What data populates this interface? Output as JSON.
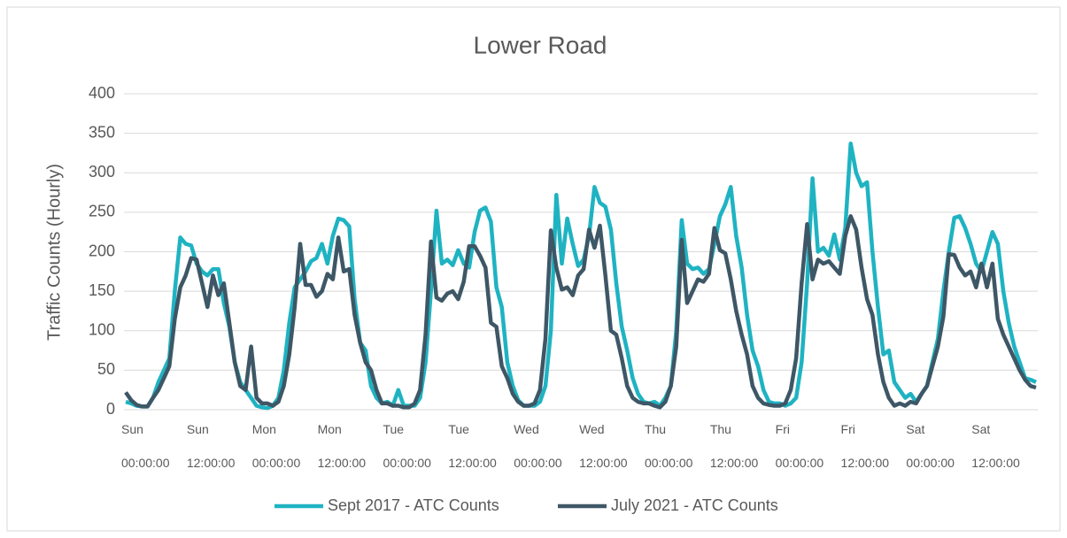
{
  "chart_data": {
    "type": "line",
    "title": "Lower Road",
    "y_label": "Traffic Counts (Hourly)",
    "categories": [
      "Sun\n00:00:00",
      null,
      null,
      null,
      null,
      null,
      null,
      null,
      null,
      null,
      null,
      null,
      "Sun\n12:00:00",
      null,
      null,
      null,
      null,
      null,
      null,
      null,
      null,
      null,
      null,
      null,
      "Mon\n00:00:00",
      null,
      null,
      null,
      null,
      null,
      null,
      null,
      null,
      null,
      null,
      null,
      "Mon\n12:00:00",
      null,
      null,
      null,
      null,
      null,
      null,
      null,
      null,
      null,
      null,
      null,
      "Tue\n00:00:00",
      null,
      null,
      null,
      null,
      null,
      null,
      null,
      null,
      null,
      null,
      null,
      "Tue\n12:00:00",
      null,
      null,
      null,
      null,
      null,
      null,
      null,
      null,
      null,
      null,
      null,
      "Wed\n00:00:00",
      null,
      null,
      null,
      null,
      null,
      null,
      null,
      null,
      null,
      null,
      null,
      "Wed\n12:00:00",
      null,
      null,
      null,
      null,
      null,
      null,
      null,
      null,
      null,
      null,
      null,
      "Thu\n00:00:00",
      null,
      null,
      null,
      null,
      null,
      null,
      null,
      null,
      null,
      null,
      null,
      "Thu\n12:00:00",
      null,
      null,
      null,
      null,
      null,
      null,
      null,
      null,
      null,
      null,
      null,
      "Fri\n00:00:00",
      null,
      null,
      null,
      null,
      null,
      null,
      null,
      null,
      null,
      null,
      null,
      "Fri\n12:00:00",
      null,
      null,
      null,
      null,
      null,
      null,
      null,
      null,
      null,
      null,
      null,
      "Sat\n00:00:00",
      null,
      null,
      null,
      null,
      null,
      null,
      null,
      null,
      null,
      null,
      null,
      "Sat\n12:00:00",
      null,
      null,
      null,
      null,
      null,
      null,
      null,
      null,
      null,
      null,
      null
    ],
    "series": [
      {
        "name": "Sept 2017 - ATC Counts",
        "color": "#1fb3c2",
        "values": [
          10,
          8,
          5,
          4,
          4,
          15,
          35,
          50,
          65,
          150,
          218,
          210,
          208,
          185,
          175,
          170,
          178,
          178,
          135,
          105,
          60,
          35,
          25,
          15,
          5,
          3,
          2,
          5,
          15,
          50,
          110,
          155,
          165,
          175,
          188,
          192,
          210,
          185,
          220,
          242,
          240,
          232,
          140,
          85,
          75,
          30,
          15,
          8,
          10,
          5,
          25,
          5,
          5,
          5,
          15,
          60,
          150,
          252,
          185,
          190,
          183,
          202,
          185,
          180,
          225,
          252,
          256,
          238,
          155,
          130,
          60,
          30,
          12,
          5,
          5,
          5,
          10,
          30,
          100,
          272,
          185,
          242,
          210,
          182,
          190,
          220,
          282,
          262,
          257,
          228,
          160,
          105,
          75,
          40,
          20,
          10,
          8,
          10,
          5,
          15,
          30,
          100,
          240,
          185,
          178,
          180,
          172,
          178,
          210,
          245,
          260,
          282,
          220,
          180,
          120,
          75,
          55,
          25,
          10,
          8,
          8,
          5,
          8,
          15,
          60,
          160,
          293,
          200,
          205,
          195,
          222,
          190,
          230,
          337,
          300,
          283,
          288,
          200,
          130,
          70,
          75,
          35,
          25,
          15,
          20,
          10,
          20,
          30,
          60,
          90,
          150,
          200,
          243,
          245,
          230,
          210,
          185,
          175,
          200,
          225,
          210,
          150,
          110,
          80,
          60,
          40,
          38,
          35
        ]
      },
      {
        "name": "July 2021 - ATC Counts",
        "color": "#3e5766",
        "values": [
          22,
          12,
          6,
          4,
          4,
          15,
          25,
          40,
          55,
          115,
          155,
          170,
          192,
          190,
          160,
          130,
          170,
          145,
          160,
          110,
          60,
          30,
          25,
          80,
          15,
          8,
          8,
          5,
          10,
          30,
          70,
          130,
          210,
          158,
          158,
          143,
          150,
          172,
          165,
          218,
          175,
          178,
          120,
          85,
          60,
          50,
          25,
          8,
          8,
          5,
          5,
          3,
          3,
          8,
          25,
          95,
          213,
          142,
          138,
          147,
          150,
          140,
          162,
          207,
          207,
          195,
          180,
          110,
          105,
          55,
          40,
          20,
          10,
          5,
          5,
          8,
          25,
          90,
          227,
          180,
          152,
          155,
          145,
          170,
          178,
          228,
          205,
          233,
          170,
          100,
          95,
          65,
          30,
          15,
          10,
          8,
          8,
          5,
          3,
          10,
          30,
          80,
          215,
          135,
          150,
          165,
          162,
          172,
          230,
          202,
          198,
          165,
          125,
          95,
          70,
          30,
          15,
          8,
          6,
          5,
          5,
          8,
          25,
          65,
          160,
          235,
          165,
          190,
          185,
          188,
          180,
          172,
          220,
          245,
          228,
          180,
          140,
          120,
          70,
          35,
          15,
          5,
          8,
          5,
          10,
          8,
          20,
          30,
          55,
          80,
          118,
          197,
          196,
          180,
          170,
          175,
          155,
          185,
          155,
          185,
          115,
          95,
          80,
          65,
          50,
          38,
          30,
          28
        ]
      }
    ],
    "ylim": [
      0,
      400
    ],
    "yticks": [
      0,
      50,
      100,
      150,
      200,
      250,
      300,
      350,
      400
    ],
    "grid": true,
    "legend": "bottom"
  }
}
